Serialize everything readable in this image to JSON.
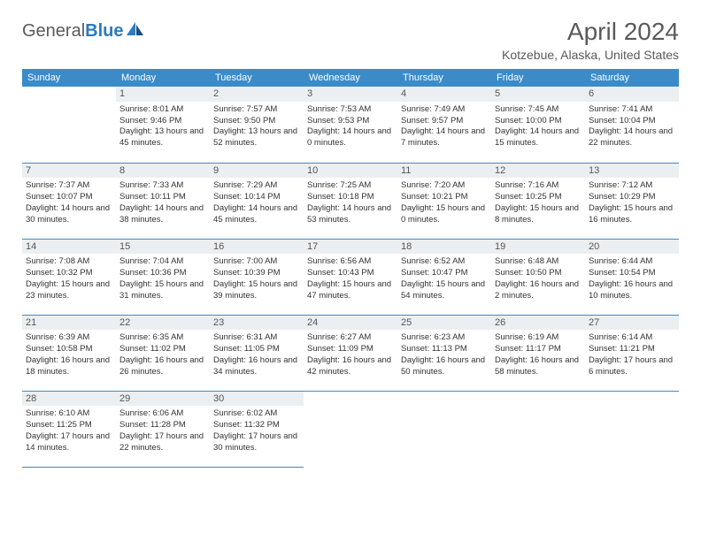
{
  "logo": {
    "text_general": "General",
    "text_blue": "Blue"
  },
  "title": "April 2024",
  "location": "Kotzebue, Alaska, United States",
  "colors": {
    "header_bg": "#3b8bc9",
    "header_text": "#ffffff",
    "daynum_bg": "#eceff1",
    "border": "#3b8bc9",
    "text": "#333333",
    "title_text": "#5a5a5a",
    "logo_blue": "#2b7bbf"
  },
  "table": {
    "type": "table",
    "columns": [
      "Sunday",
      "Monday",
      "Tuesday",
      "Wednesday",
      "Thursday",
      "Friday",
      "Saturday"
    ]
  },
  "days": {
    "1": {
      "sunrise": "Sunrise: 8:01 AM",
      "sunset": "Sunset: 9:46 PM",
      "daylight": "Daylight: 13 hours and 45 minutes."
    },
    "2": {
      "sunrise": "Sunrise: 7:57 AM",
      "sunset": "Sunset: 9:50 PM",
      "daylight": "Daylight: 13 hours and 52 minutes."
    },
    "3": {
      "sunrise": "Sunrise: 7:53 AM",
      "sunset": "Sunset: 9:53 PM",
      "daylight": "Daylight: 14 hours and 0 minutes."
    },
    "4": {
      "sunrise": "Sunrise: 7:49 AM",
      "sunset": "Sunset: 9:57 PM",
      "daylight": "Daylight: 14 hours and 7 minutes."
    },
    "5": {
      "sunrise": "Sunrise: 7:45 AM",
      "sunset": "Sunset: 10:00 PM",
      "daylight": "Daylight: 14 hours and 15 minutes."
    },
    "6": {
      "sunrise": "Sunrise: 7:41 AM",
      "sunset": "Sunset: 10:04 PM",
      "daylight": "Daylight: 14 hours and 22 minutes."
    },
    "7": {
      "sunrise": "Sunrise: 7:37 AM",
      "sunset": "Sunset: 10:07 PM",
      "daylight": "Daylight: 14 hours and 30 minutes."
    },
    "8": {
      "sunrise": "Sunrise: 7:33 AM",
      "sunset": "Sunset: 10:11 PM",
      "daylight": "Daylight: 14 hours and 38 minutes."
    },
    "9": {
      "sunrise": "Sunrise: 7:29 AM",
      "sunset": "Sunset: 10:14 PM",
      "daylight": "Daylight: 14 hours and 45 minutes."
    },
    "10": {
      "sunrise": "Sunrise: 7:25 AM",
      "sunset": "Sunset: 10:18 PM",
      "daylight": "Daylight: 14 hours and 53 minutes."
    },
    "11": {
      "sunrise": "Sunrise: 7:20 AM",
      "sunset": "Sunset: 10:21 PM",
      "daylight": "Daylight: 15 hours and 0 minutes."
    },
    "12": {
      "sunrise": "Sunrise: 7:16 AM",
      "sunset": "Sunset: 10:25 PM",
      "daylight": "Daylight: 15 hours and 8 minutes."
    },
    "13": {
      "sunrise": "Sunrise: 7:12 AM",
      "sunset": "Sunset: 10:29 PM",
      "daylight": "Daylight: 15 hours and 16 minutes."
    },
    "14": {
      "sunrise": "Sunrise: 7:08 AM",
      "sunset": "Sunset: 10:32 PM",
      "daylight": "Daylight: 15 hours and 23 minutes."
    },
    "15": {
      "sunrise": "Sunrise: 7:04 AM",
      "sunset": "Sunset: 10:36 PM",
      "daylight": "Daylight: 15 hours and 31 minutes."
    },
    "16": {
      "sunrise": "Sunrise: 7:00 AM",
      "sunset": "Sunset: 10:39 PM",
      "daylight": "Daylight: 15 hours and 39 minutes."
    },
    "17": {
      "sunrise": "Sunrise: 6:56 AM",
      "sunset": "Sunset: 10:43 PM",
      "daylight": "Daylight: 15 hours and 47 minutes."
    },
    "18": {
      "sunrise": "Sunrise: 6:52 AM",
      "sunset": "Sunset: 10:47 PM",
      "daylight": "Daylight: 15 hours and 54 minutes."
    },
    "19": {
      "sunrise": "Sunrise: 6:48 AM",
      "sunset": "Sunset: 10:50 PM",
      "daylight": "Daylight: 16 hours and 2 minutes."
    },
    "20": {
      "sunrise": "Sunrise: 6:44 AM",
      "sunset": "Sunset: 10:54 PM",
      "daylight": "Daylight: 16 hours and 10 minutes."
    },
    "21": {
      "sunrise": "Sunrise: 6:39 AM",
      "sunset": "Sunset: 10:58 PM",
      "daylight": "Daylight: 16 hours and 18 minutes."
    },
    "22": {
      "sunrise": "Sunrise: 6:35 AM",
      "sunset": "Sunset: 11:02 PM",
      "daylight": "Daylight: 16 hours and 26 minutes."
    },
    "23": {
      "sunrise": "Sunrise: 6:31 AM",
      "sunset": "Sunset: 11:05 PM",
      "daylight": "Daylight: 16 hours and 34 minutes."
    },
    "24": {
      "sunrise": "Sunrise: 6:27 AM",
      "sunset": "Sunset: 11:09 PM",
      "daylight": "Daylight: 16 hours and 42 minutes."
    },
    "25": {
      "sunrise": "Sunrise: 6:23 AM",
      "sunset": "Sunset: 11:13 PM",
      "daylight": "Daylight: 16 hours and 50 minutes."
    },
    "26": {
      "sunrise": "Sunrise: 6:19 AM",
      "sunset": "Sunset: 11:17 PM",
      "daylight": "Daylight: 16 hours and 58 minutes."
    },
    "27": {
      "sunrise": "Sunrise: 6:14 AM",
      "sunset": "Sunset: 11:21 PM",
      "daylight": "Daylight: 17 hours and 6 minutes."
    },
    "28": {
      "sunrise": "Sunrise: 6:10 AM",
      "sunset": "Sunset: 11:25 PM",
      "daylight": "Daylight: 17 hours and 14 minutes."
    },
    "29": {
      "sunrise": "Sunrise: 6:06 AM",
      "sunset": "Sunset: 11:28 PM",
      "daylight": "Daylight: 17 hours and 22 minutes."
    },
    "30": {
      "sunrise": "Sunrise: 6:02 AM",
      "sunset": "Sunset: 11:32 PM",
      "daylight": "Daylight: 17 hours and 30 minutes."
    }
  },
  "layout": {
    "first_day_offset": 1,
    "days_in_month": 30,
    "weeks": 5
  }
}
